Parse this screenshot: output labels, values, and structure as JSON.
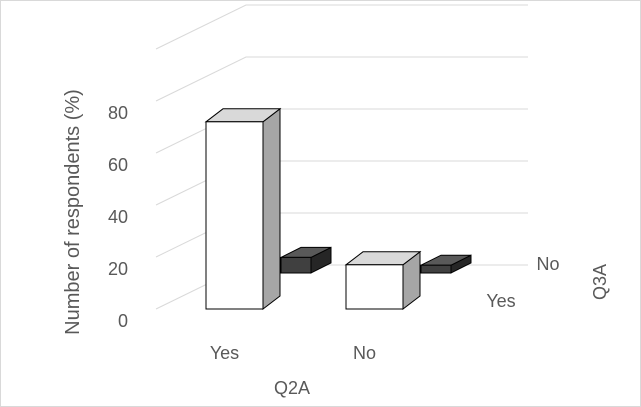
{
  "chart_data": {
    "type": "bar",
    "subtype": "3d-column",
    "categories": [
      "Yes",
      "No"
    ],
    "series": [
      {
        "name": "Yes",
        "values": [
          72,
          17
        ],
        "color": "#ffffff",
        "side": "#a6a6a6",
        "top": "#d9d9d9"
      },
      {
        "name": "No",
        "values": [
          6,
          3
        ],
        "color": "#404040",
        "side": "#262626",
        "top": "#595959"
      }
    ],
    "xlabel": "Q2A",
    "ylabel": "Number of respondents (%)",
    "zlabel": "Q3A",
    "yticks": [
      "0",
      "20",
      "40",
      "60",
      "80"
    ],
    "ylim": [
      0,
      100
    ],
    "grid": true
  }
}
